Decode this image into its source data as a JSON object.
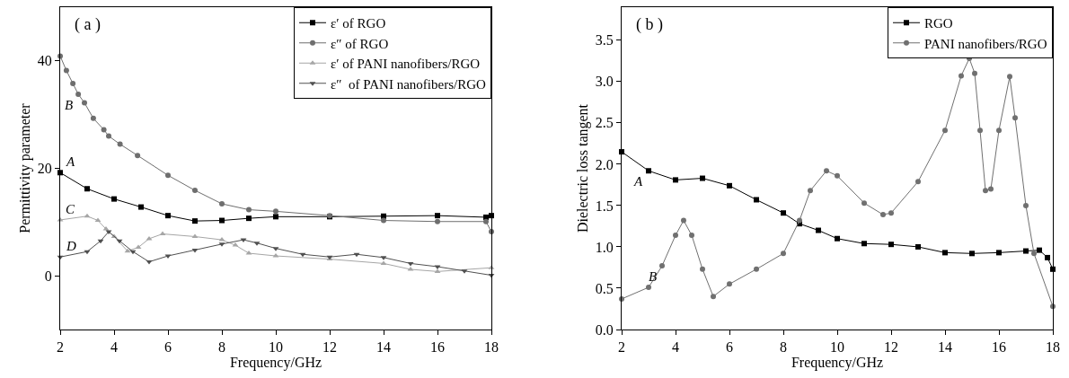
{
  "chart_data": [
    {
      "type": "line",
      "xlabel": "Frequency/GHz",
      "ylabel": "Permittivity parameter",
      "xlim": [
        2,
        18
      ],
      "xticks": [
        2,
        4,
        6,
        8,
        10,
        12,
        14,
        16,
        18
      ],
      "ylim": [
        -10,
        50
      ],
      "yticks": [
        0,
        20,
        40
      ],
      "grid": false,
      "legend": "top right",
      "line_style": "solid",
      "annotations": [
        "( a )",
        {
          "text": "B",
          "x": 2.67,
          "y": 33.8
        },
        {
          "text": "A",
          "x": 2,
          "y": 19.2
        },
        {
          "text": "C",
          "x": 2,
          "y": 10.4
        },
        {
          "text": "D",
          "x": 2,
          "y": 3.5
        }
      ],
      "series": [
        {
          "name": "ε′ of RGO",
          "color": "#000000",
          "marker": "square",
          "x": [
            2,
            3,
            4,
            5,
            6,
            7,
            8,
            9,
            10,
            12,
            14,
            16,
            17.8,
            18
          ],
          "values": [
            19.2,
            16.2,
            14.3,
            12.8,
            11.2,
            10.2,
            10.3,
            10.7,
            11,
            11,
            11.1,
            11.2,
            10.9,
            11.2
          ]
        },
        {
          "name": "ε″ of RGO",
          "color": "#6e6e6e",
          "marker": "circle",
          "x": [
            2,
            2.23,
            2.47,
            2.67,
            2.9,
            3.23,
            3.62,
            3.8,
            4.22,
            4.87,
            6,
            7,
            8,
            9,
            10,
            12,
            14,
            16,
            17.8,
            18
          ],
          "values": [
            40.9,
            38.2,
            35.8,
            33.8,
            32.2,
            29.3,
            27.2,
            26,
            24.5,
            22.4,
            18.7,
            15.9,
            13.4,
            12.3,
            12,
            11.2,
            10.3,
            10.1,
            10.1,
            8.2
          ]
        },
        {
          "name": "ε′ of PANI nanofibers/RGO",
          "color": "#a6a6a6",
          "marker": "triangle",
          "x": [
            2,
            3,
            3.4,
            3.7,
            4,
            4.5,
            4.9,
            5.3,
            5.8,
            7,
            8,
            8.5,
            9,
            10,
            12,
            14,
            15,
            16,
            18
          ],
          "values": [
            10.4,
            11.1,
            10.3,
            8.7,
            7.3,
            4.6,
            5.3,
            6.9,
            7.8,
            7.3,
            6.7,
            5.7,
            4.2,
            3.7,
            3.1,
            2.3,
            1.2,
            0.8,
            1.5
          ]
        },
        {
          "name": "ε″  of PANI nanofibers/RGO",
          "color": "#505050",
          "marker": "triangle-down",
          "x": [
            2,
            3,
            3.5,
            3.8,
            4.2,
            4.7,
            5.3,
            6,
            7,
            8,
            8.8,
            9.3,
            10,
            11,
            12,
            13,
            14,
            15,
            16,
            17,
            18
          ],
          "values": [
            3.5,
            4.5,
            6.5,
            8.2,
            6.5,
            4.5,
            2.6,
            3.7,
            4.8,
            5.9,
            6.7,
            6.1,
            5.1,
            4,
            3.5,
            4,
            3.4,
            2.3,
            1.7,
            0.9,
            0.1
          ]
        }
      ]
    },
    {
      "type": "line",
      "xlabel": "Frequency/GHz",
      "ylabel": "Dielectric loss tangent",
      "xlim": [
        2,
        18
      ],
      "xticks": [
        2,
        4,
        6,
        8,
        10,
        12,
        14,
        16,
        18
      ],
      "ylim": [
        0,
        3.9
      ],
      "yticks": [
        {
          "value": 0,
          "label": "0.0"
        },
        0.5,
        {
          "value": 1,
          "label": "1.0"
        },
        1.5,
        {
          "value": 2,
          "label": "2.0"
        },
        2.5,
        {
          "value": 3,
          "label": "3.0"
        },
        3.5
      ],
      "grid": false,
      "legend": "top right",
      "line_style": "solid",
      "annotations": [
        "( b )",
        {
          "text": "A",
          "x": 3,
          "y": 1.92
        },
        {
          "text": "B",
          "x": 3.5,
          "y": 0.77
        }
      ],
      "series": [
        {
          "name": "RGO",
          "color": "#000000",
          "marker": "square",
          "x": [
            2,
            3,
            4,
            5,
            6,
            7,
            8,
            8.6,
            9.3,
            10,
            11,
            12,
            13,
            14,
            15,
            16,
            17,
            17.5,
            17.8,
            18
          ],
          "values": [
            2.15,
            1.92,
            1.81,
            1.83,
            1.74,
            1.57,
            1.41,
            1.28,
            1.2,
            1.1,
            1.04,
            1.03,
            1,
            0.93,
            0.92,
            0.93,
            0.95,
            0.96,
            0.87,
            0.73
          ]
        },
        {
          "name": "PANI nanofibers/RGO",
          "color": "#707070",
          "marker": "circle",
          "x": [
            2,
            3,
            3.5,
            4,
            4.3,
            4.6,
            5,
            5.4,
            6,
            7,
            8,
            8.6,
            9,
            9.6,
            10,
            11,
            11.7,
            12,
            13,
            14,
            14.6,
            14.9,
            15.1,
            15.3,
            15.5,
            15.7,
            16,
            16.4,
            16.6,
            17,
            17.3,
            18
          ],
          "values": [
            0.37,
            0.51,
            0.77,
            1.14,
            1.32,
            1.14,
            0.73,
            0.4,
            0.55,
            0.73,
            0.92,
            1.32,
            1.68,
            1.92,
            1.86,
            1.53,
            1.39,
            1.41,
            1.79,
            2.41,
            3.07,
            3.28,
            3.1,
            2.41,
            1.68,
            1.7,
            2.41,
            3.06,
            2.56,
            1.5,
            0.92,
            0.28
          ]
        }
      ]
    }
  ]
}
